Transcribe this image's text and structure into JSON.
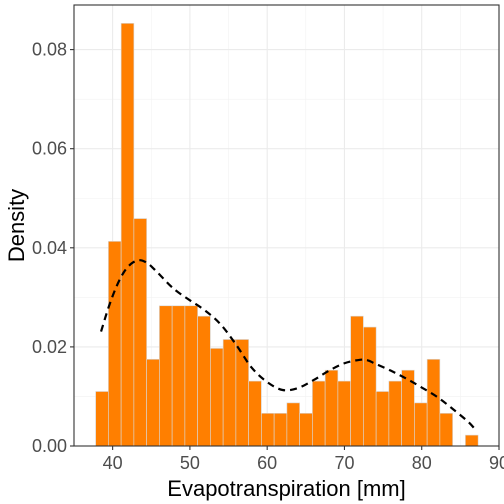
{
  "chart_data": {
    "type": "bar",
    "subtype": "histogram-with-density",
    "title": "",
    "xlabel": "Evapotranspiration [mm]",
    "ylabel": "Density",
    "xlim": [
      35,
      90
    ],
    "ylim": [
      0,
      0.089
    ],
    "x_ticks": [
      40,
      50,
      60,
      70,
      80,
      90
    ],
    "y_ticks": [
      0.0,
      0.02,
      0.04,
      0.06,
      0.08
    ],
    "x_tick_labels": [
      "40",
      "50",
      "60",
      "70",
      "80",
      "90"
    ],
    "y_tick_labels": [
      "0.00",
      "0.02",
      "0.04",
      "0.06",
      "0.08"
    ],
    "grid": true,
    "bin_width": 1.65,
    "bin_left_edges": [
      37.8,
      39.45,
      41.1,
      42.75,
      44.4,
      46.05,
      47.7,
      49.35,
      51.0,
      52.65,
      54.3,
      55.95,
      57.6,
      59.25,
      60.9,
      62.55,
      64.2,
      65.85,
      67.5,
      69.15,
      70.8,
      72.45,
      74.1,
      75.75,
      77.4,
      79.05,
      80.7,
      82.35,
      84.0,
      85.65
    ],
    "values": [
      0.011,
      0.0413,
      0.0853,
      0.0459,
      0.0175,
      0.0283,
      0.0283,
      0.0283,
      0.0262,
      0.0197,
      0.0215,
      0.0215,
      0.0131,
      0.0066,
      0.0066,
      0.0087,
      0.0066,
      0.0131,
      0.0153,
      0.0131,
      0.0262,
      0.024,
      0.011,
      0.0131,
      0.0153,
      0.0087,
      0.0175,
      0.0066,
      0.0,
      0.0022
    ],
    "bar_color": "#ff7f00",
    "bar_edge_color": "#d9d9d9",
    "density": {
      "style": "dashed",
      "color": "#000000",
      "x": [
        38.5,
        39.5,
        40.5,
        41.5,
        42.5,
        43.5,
        44.5,
        45.5,
        46.5,
        47.5,
        48.5,
        50,
        52,
        54,
        56,
        58,
        60,
        62,
        64,
        66,
        68,
        70,
        72,
        73,
        74,
        76,
        78,
        80,
        82,
        84,
        86,
        87
      ],
      "y": [
        0.0231,
        0.0281,
        0.0322,
        0.0352,
        0.0369,
        0.0375,
        0.0369,
        0.0355,
        0.0339,
        0.0323,
        0.031,
        0.0294,
        0.0273,
        0.0245,
        0.0204,
        0.0158,
        0.0129,
        0.0113,
        0.0117,
        0.0133,
        0.0152,
        0.0167,
        0.0174,
        0.0173,
        0.0166,
        0.0152,
        0.0136,
        0.0118,
        0.0099,
        0.0075,
        0.0049,
        0.0032
      ]
    }
  }
}
